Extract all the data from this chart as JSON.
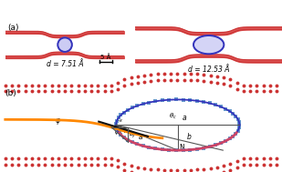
{
  "panel_a_label": "(a)",
  "panel_b_label": "(b)",
  "d1_text": "d = 7.51 Å",
  "d2_text": "d = 12.53 Å",
  "scale_text": "5 Å",
  "graphene_color": "#cc3333",
  "graphene_fill": "#dd5555",
  "cnt_color_round": "#3333bb",
  "cnt_fill_round": "#aaaaee",
  "cnt_color_oval": "#3333bb",
  "background": "#ffffff",
  "orange_color": "#ff8800",
  "black_color": "#111111",
  "dot_red": "#cc3333",
  "dot_blue": "#6699cc",
  "pink_color": "#cc4466",
  "gray_color": "#555555"
}
